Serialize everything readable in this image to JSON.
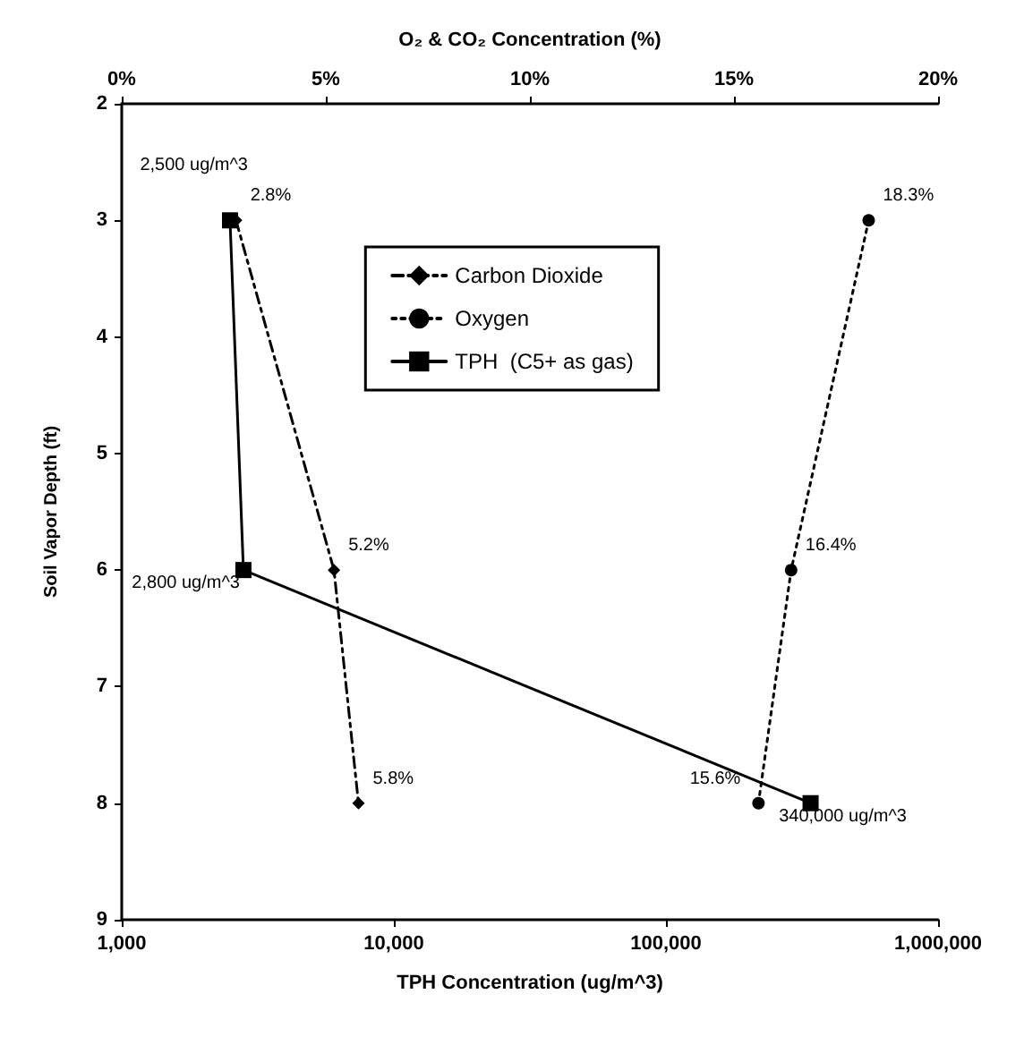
{
  "chart_data": {
    "type": "line",
    "xlabel": "TPH Concentration (ug/m^3)",
    "x2label": "O₂ & CO₂ Concentration (%)",
    "ylabel": "Soil Vapor Depth (ft)",
    "log": "x",
    "xlim": [
      1000,
      1000000
    ],
    "xticks": [
      {
        "value": 1000,
        "label": "1,000"
      },
      {
        "value": 10000,
        "label": "10,000"
      },
      {
        "value": 100000,
        "label": "100,000"
      },
      {
        "value": 1000000,
        "label": "1,000,000"
      }
    ],
    "x2lim": [
      0,
      20
    ],
    "x2ticks": [
      {
        "value": 0,
        "label": "0%"
      },
      {
        "value": 5,
        "label": "5%"
      },
      {
        "value": 10,
        "label": "10%"
      },
      {
        "value": 15,
        "label": "15%"
      },
      {
        "value": 20,
        "label": "20%"
      }
    ],
    "ylim": [
      9,
      2
    ],
    "yticks": [
      2,
      3,
      4,
      5,
      6,
      7,
      8,
      9
    ],
    "grid": false,
    "annotations": [
      "2.8%",
      "5.2%",
      "5.8%",
      "18.3%",
      "16.4%",
      "15.6%",
      {
        "text": "2,500 ug/m^3",
        "x": 2500,
        "y": 3
      },
      {
        "text": "2,800 ug/m^3",
        "x": 2800,
        "y": 6
      },
      {
        "text": "340,000 ug/m^3",
        "x": 340000,
        "y": 8
      }
    ],
    "legend": "top",
    "series": [
      {
        "name": "Carbon Dioxide",
        "color": "#000000",
        "axis": "x2",
        "marker": "diamond",
        "line_style": "dashed",
        "x": [
          2.8,
          5.2,
          5.8
        ],
        "values": [
          3,
          6,
          8
        ]
      },
      {
        "name": "Oxygen",
        "color": "#000000",
        "axis": "x2",
        "marker": "circle",
        "line_style": "dotted",
        "x": [
          18.3,
          16.4,
          15.6
        ],
        "values": [
          3,
          6,
          8
        ]
      },
      {
        "name": "TPH  (C5+ as gas)",
        "color": "#000000",
        "marker": "square",
        "line_style": "solid",
        "x": [
          2500,
          2800,
          340000
        ],
        "values": [
          3,
          6,
          8
        ]
      }
    ]
  }
}
